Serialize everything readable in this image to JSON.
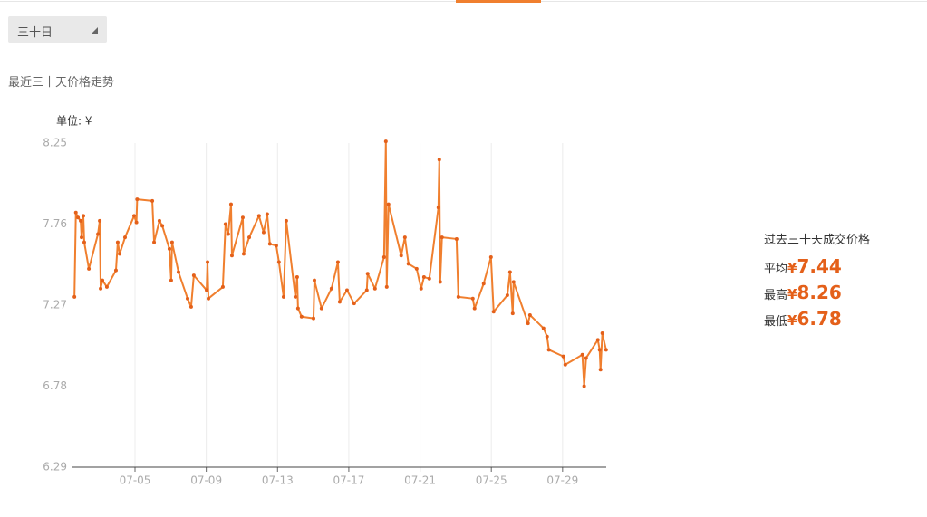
{
  "dropdown": {
    "label": "三十日"
  },
  "chart_data": {
    "type": "line",
    "title": "最近三十天价格走势",
    "unit_label": "单位: ¥",
    "color": "#f07f2e",
    "xgrid": true,
    "x": [
      1.6,
      1.68,
      1.8,
      1.95,
      2.0,
      2.1,
      2.15,
      2.41,
      2.92,
      3.02,
      3.07,
      3.17,
      3.42,
      3.93,
      4.03,
      4.14,
      4.44,
      4.95,
      5.08,
      5.12,
      5.97,
      6.07,
      6.37,
      6.53,
      6.93,
      7.03,
      7.08,
      7.44,
      7.95,
      8.15,
      8.3,
      9.02,
      9.07,
      9.12,
      9.93,
      10.08,
      10.23,
      10.39,
      10.44,
      11.05,
      11.1,
      11.41,
      11.96,
      12.22,
      12.42,
      12.57,
      12.93,
      13.08,
      13.34,
      13.49,
      14.0,
      14.1,
      14.15,
      14.35,
      15.02,
      15.07,
      15.47,
      16.03,
      16.39,
      16.49,
      16.9,
      17.3,
      18.01,
      18.06,
      18.47,
      18.98,
      19.08,
      19.13,
      19.23,
      19.94,
      20.15,
      20.35,
      20.81,
      21.06,
      21.22,
      21.52,
      22.03,
      22.08,
      22.13,
      22.23,
      23.05,
      23.15,
      23.96,
      24.06,
      24.57,
      24.98,
      25.13,
      25.9,
      26.05,
      26.2,
      26.25,
      27.06,
      27.17,
      27.93,
      28.13,
      28.23,
      29.04,
      29.15,
      30.11,
      30.21,
      30.32,
      30.98,
      31.08,
      31.13,
      31.23,
      31.44
    ],
    "values": [
      7.32,
      7.83,
      7.8,
      7.78,
      7.68,
      7.81,
      7.65,
      7.49,
      7.7,
      7.78,
      7.37,
      7.42,
      7.38,
      7.48,
      7.65,
      7.58,
      7.68,
      7.81,
      7.77,
      7.91,
      7.9,
      7.65,
      7.78,
      7.75,
      7.61,
      7.42,
      7.65,
      7.47,
      7.31,
      7.26,
      7.45,
      7.36,
      7.53,
      7.31,
      7.38,
      7.76,
      7.7,
      7.88,
      7.57,
      7.8,
      7.58,
      7.68,
      7.81,
      7.71,
      7.82,
      7.64,
      7.63,
      7.53,
      7.32,
      7.78,
      7.32,
      7.44,
      7.25,
      7.2,
      7.19,
      7.42,
      7.25,
      7.37,
      7.53,
      7.29,
      7.36,
      7.28,
      7.36,
      7.46,
      7.37,
      7.56,
      8.26,
      7.38,
      7.88,
      7.57,
      7.68,
      7.52,
      7.49,
      7.37,
      7.44,
      7.43,
      7.86,
      8.15,
      7.41,
      7.68,
      7.67,
      7.32,
      7.31,
      7.25,
      7.4,
      7.56,
      7.23,
      7.33,
      7.47,
      7.22,
      7.41,
      7.16,
      7.21,
      7.13,
      7.08,
      7.0,
      6.96,
      6.91,
      6.97,
      6.78,
      6.95,
      7.06,
      7.0,
      6.88,
      7.1,
      7.0
    ],
    "xlim": [
      1.49,
      31.45
    ],
    "ylim": [
      6.29,
      8.25
    ],
    "xticks": [
      {
        "value": 5,
        "label": "07-05"
      },
      {
        "value": 9,
        "label": "07-09"
      },
      {
        "value": 13,
        "label": "07-13"
      },
      {
        "value": 17,
        "label": "07-17"
      },
      {
        "value": 21,
        "label": "07-21"
      },
      {
        "value": 25,
        "label": "07-25"
      },
      {
        "value": 29,
        "label": "07-29"
      }
    ],
    "yticks": [
      8.25,
      7.76,
      7.27,
      6.78,
      6.29
    ]
  },
  "summary": {
    "title": "过去三十天成交价格",
    "rows": [
      {
        "label": "平均",
        "currency": "¥",
        "value": 7.44
      },
      {
        "label": "最高",
        "currency": "¥",
        "value": 8.26
      },
      {
        "label": "最低",
        "currency": "¥",
        "value": 6.78
      }
    ]
  }
}
